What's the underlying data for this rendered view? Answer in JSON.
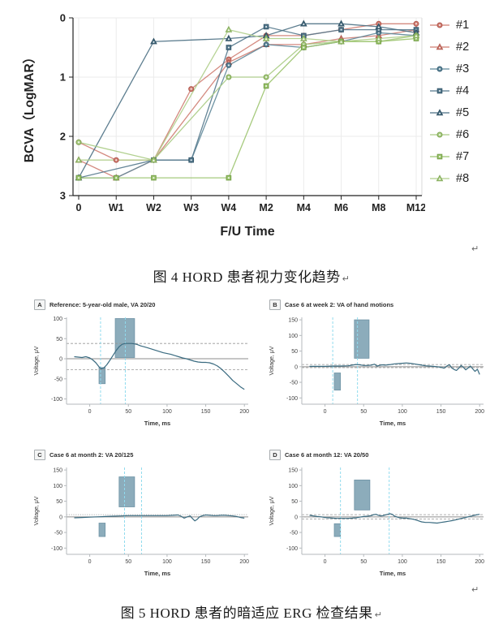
{
  "colors": {
    "salmon": "#CF7D72",
    "salmon_dark": "#B25A50",
    "bluegray": "#5D8396",
    "bluegray_dark": "#3C6478",
    "green": "#A2C47C",
    "green_dark": "#7FA653",
    "erg_line": "#3A6B80",
    "erg_rect_fill": "#8CACBB",
    "erg_rect_stroke": "#6E93A5",
    "erg_vline": "#90DBEE",
    "axis_light": "#b5babd",
    "grid": "#ebebeb",
    "text_dark": "#222222"
  },
  "figure4": {
    "caption": "图 4  HORD 患者视力变化趋势",
    "return_mark": "↵"
  },
  "figure5": {
    "caption": "图 5  HORD 患者的暗适应 ERG 检查结果",
    "return_mark": "↵"
  },
  "marks": {
    "after_figure4": "↵",
    "after_figure5": "↵"
  },
  "chart_data": [
    {
      "id": "bcva",
      "type": "line",
      "title": "",
      "xlabel": "F/U Time",
      "ylabel": "BCVA（LogMAR）",
      "y_inverted": true,
      "ylim": [
        0,
        3
      ],
      "yticks": [
        0,
        1,
        2,
        3
      ],
      "grid": true,
      "legend_position": "right",
      "categories": [
        "0",
        "W1",
        "W2",
        "W3",
        "W4",
        "M2",
        "M4",
        "M6",
        "M8",
        "M12"
      ],
      "series": [
        {
          "name": "#1",
          "color": "#CF7D72",
          "stroke": "#B25A50",
          "marker": "circle",
          "values": [
            2.1,
            2.4,
            2.4,
            1.2,
            0.7,
            0.3,
            0.3,
            0.2,
            0.1,
            0.1
          ]
        },
        {
          "name": "#2",
          "color": "#CF7D72",
          "stroke": "#B25A50",
          "marker": "triangle",
          "values": [
            2.4,
            2.7,
            2.4,
            null,
            0.75,
            0.45,
            0.45,
            0.35,
            0.3,
            0.2
          ]
        },
        {
          "name": "#3",
          "color": "#5E8799",
          "stroke": "#3C6478",
          "marker": "circle",
          "values": [
            2.7,
            2.7,
            2.4,
            2.4,
            0.8,
            0.45,
            0.5,
            0.4,
            0.25,
            0.3
          ]
        },
        {
          "name": "#4",
          "color": "#54788C",
          "stroke": "#35586C",
          "marker": "square",
          "values": [
            2.7,
            null,
            2.4,
            2.4,
            0.5,
            0.15,
            0.3,
            0.2,
            0.2,
            0.2
          ]
        },
        {
          "name": "#5",
          "color": "#4A6F83",
          "stroke": "#2F5063",
          "marker": "triangle",
          "values": [
            2.7,
            null,
            0.4,
            null,
            0.35,
            0.3,
            0.1,
            0.1,
            0.15,
            0.25
          ]
        },
        {
          "name": "#6",
          "color": "#A9CB83",
          "stroke": "#7FA653",
          "marker": "circle",
          "values": [
            2.1,
            null,
            2.4,
            null,
            1.0,
            1.0,
            0.45,
            0.4,
            0.4,
            0.3
          ]
        },
        {
          "name": "#7",
          "color": "#9CC46F",
          "stroke": "#74A046",
          "marker": "square",
          "values": [
            2.7,
            2.7,
            2.7,
            null,
            2.7,
            1.15,
            0.5,
            0.4,
            0.4,
            0.35
          ]
        },
        {
          "name": "#8",
          "color": "#AFCE8A",
          "stroke": "#83AB58",
          "marker": "triangle",
          "values": [
            2.4,
            null,
            2.4,
            null,
            0.2,
            0.35,
            0.35,
            0.4,
            0.35,
            0.3
          ]
        }
      ]
    },
    {
      "id": "erg_a",
      "type": "line",
      "panel_letter": "A",
      "title": "Reference: 5-year-old male, VA 20/20",
      "xlabel": "Time, ms",
      "ylabel": "Voltage, μV",
      "xlim": [
        -30,
        205
      ],
      "ylim": [
        -113,
        103
      ],
      "xticks": [
        0,
        50,
        100,
        150,
        200
      ],
      "yticks": [
        100,
        50,
        0,
        -50,
        -100
      ],
      "vlines": [
        14,
        46
      ],
      "hlines": [
        {
          "y": 38,
          "style": "dashed"
        },
        {
          "y": 0,
          "style": "solid"
        },
        {
          "y": -27,
          "style": "dashed"
        }
      ],
      "rects": [
        {
          "x0": 12,
          "x1": 20,
          "y0": -62,
          "y1": -22
        },
        {
          "x0": 33,
          "x1": 58,
          "y0": 3,
          "y1": 100
        }
      ],
      "curve": {
        "x": [
          -20,
          -15,
          -10,
          -5,
          0,
          4,
          8,
          12,
          15,
          18,
          22,
          26,
          30,
          34,
          38,
          42,
          46,
          50,
          54,
          58,
          62,
          66,
          70,
          75,
          80,
          85,
          90,
          95,
          100,
          105,
          110,
          115,
          120,
          125,
          130,
          135,
          140,
          145,
          150,
          155,
          160,
          165,
          170,
          175,
          180,
          185,
          190,
          195,
          200
        ],
        "y": [
          5,
          4,
          3,
          5,
          2,
          -3,
          -10,
          -20,
          -25,
          -23,
          -15,
          -4,
          8,
          20,
          30,
          36,
          38,
          38,
          38,
          37,
          35,
          32,
          30,
          27,
          24,
          21,
          18,
          15,
          13,
          11,
          8,
          5,
          2,
          0,
          -3,
          -6,
          -8,
          -9,
          -9,
          -10,
          -13,
          -18,
          -25,
          -34,
          -44,
          -54,
          -62,
          -70,
          -76
        ]
      }
    },
    {
      "id": "erg_b",
      "type": "line",
      "panel_letter": "B",
      "title": "Case 6 at week 2: VA of hand motions",
      "xlabel": "Time, ms",
      "ylabel": "Voltage, μV",
      "xlim": [
        -30,
        205
      ],
      "ylim": [
        -120,
        158
      ],
      "xticks": [
        0,
        50,
        100,
        150,
        200
      ],
      "yticks": [
        150,
        100,
        50,
        0,
        -50,
        -100
      ],
      "vlines": [
        10,
        42
      ],
      "hlines": [
        {
          "y": 7,
          "style": "dashed"
        },
        {
          "y": 0,
          "style": "solid"
        },
        {
          "y": -3,
          "style": "dashed"
        }
      ],
      "rects": [
        {
          "x0": 12,
          "x1": 20,
          "y0": -75,
          "y1": -20
        },
        {
          "x0": 38,
          "x1": 57,
          "y0": 27,
          "y1": 150
        }
      ],
      "curve": {
        "x": [
          -20,
          -10,
          0,
          10,
          20,
          30,
          35,
          40,
          45,
          50,
          55,
          60,
          64,
          67,
          70,
          74,
          78,
          85,
          90,
          95,
          100,
          105,
          110,
          115,
          120,
          125,
          130,
          135,
          140,
          145,
          150,
          154,
          158,
          161,
          164,
          167,
          170,
          173,
          176,
          179,
          182,
          185,
          188,
          191,
          194,
          197,
          200
        ],
        "y": [
          1,
          1,
          1,
          2,
          2,
          3,
          5,
          7,
          6,
          4,
          4,
          5,
          8,
          2,
          4,
          6,
          5,
          7,
          9,
          10,
          11,
          12,
          11,
          9,
          7,
          5,
          3,
          2,
          1,
          0,
          -2,
          -5,
          3,
          6,
          -4,
          -9,
          -12,
          -5,
          4,
          -2,
          -10,
          -4,
          2,
          -7,
          -15,
          -8,
          -25
        ]
      }
    },
    {
      "id": "erg_c",
      "type": "line",
      "panel_letter": "C",
      "title": "Case 6 at month 2: VA 20/125",
      "xlabel": "Time, ms",
      "ylabel": "Voltage, μV",
      "xlim": [
        -30,
        205
      ],
      "ylim": [
        -120,
        158
      ],
      "xticks": [
        0,
        50,
        100,
        150,
        200
      ],
      "yticks": [
        150,
        100,
        50,
        0,
        -50,
        -100
      ],
      "vlines": [
        45,
        67
      ],
      "hlines": [
        {
          "y": 7,
          "style": "dotted"
        },
        {
          "y": 0,
          "style": "solid"
        }
      ],
      "rects": [
        {
          "x0": 12,
          "x1": 20,
          "y0": -63,
          "y1": -20
        },
        {
          "x0": 38,
          "x1": 58,
          "y0": 32,
          "y1": 128
        }
      ],
      "curve": {
        "x": [
          -20,
          -10,
          0,
          10,
          20,
          30,
          40,
          50,
          60,
          70,
          80,
          90,
          100,
          108,
          114,
          118,
          122,
          126,
          130,
          133,
          136,
          139,
          142,
          146,
          150,
          155,
          160,
          165,
          170,
          175,
          180,
          185,
          190,
          195,
          200
        ],
        "y": [
          -3,
          -2,
          -1,
          0,
          1,
          2,
          3,
          4,
          4,
          4,
          4,
          4,
          4,
          5,
          6,
          2,
          -4,
          0,
          3,
          -6,
          -13,
          -8,
          0,
          4,
          6,
          5,
          4,
          4,
          5,
          5,
          4,
          3,
          1,
          -2,
          -4
        ]
      }
    },
    {
      "id": "erg_d",
      "type": "line",
      "panel_letter": "D",
      "title": "Case 6 at month 12: VA 20/50",
      "xlabel": "Time, ms",
      "ylabel": "Voltage, μV",
      "xlim": [
        -30,
        205
      ],
      "ylim": [
        -120,
        158
      ],
      "xticks": [
        0,
        50,
        100,
        150,
        200
      ],
      "yticks": [
        150,
        100,
        50,
        0,
        -50,
        -100
      ],
      "vlines": [
        20,
        83
      ],
      "hlines": [
        {
          "y": 7,
          "style": "dashed"
        },
        {
          "y": 0,
          "style": "solid"
        },
        {
          "y": -7,
          "style": "dashed"
        }
      ],
      "rects": [
        {
          "x0": 12,
          "x1": 20,
          "y0": -63,
          "y1": -22
        },
        {
          "x0": 38,
          "x1": 58,
          "y0": 22,
          "y1": 118
        }
      ],
      "curve": {
        "x": [
          -20,
          -15,
          -10,
          -5,
          0,
          5,
          10,
          15,
          20,
          25,
          30,
          35,
          40,
          45,
          50,
          55,
          60,
          63,
          66,
          69,
          72,
          75,
          78,
          81,
          84,
          87,
          90,
          95,
          100,
          105,
          110,
          115,
          120,
          125,
          130,
          135,
          140,
          145,
          150,
          155,
          160,
          165,
          170,
          175,
          180,
          185,
          190,
          195,
          200
        ],
        "y": [
          5,
          3,
          1,
          0,
          -2,
          -3,
          -4,
          -5,
          -5,
          -5,
          -5,
          -4,
          -3,
          -1,
          1,
          2,
          4,
          7,
          8,
          5,
          3,
          4,
          6,
          8,
          10,
          8,
          2,
          -2,
          -4,
          -4,
          -6,
          -8,
          -12,
          -16,
          -18,
          -18,
          -19,
          -20,
          -18,
          -16,
          -14,
          -12,
          -9,
          -6,
          -3,
          0,
          3,
          6,
          8
        ]
      }
    }
  ]
}
